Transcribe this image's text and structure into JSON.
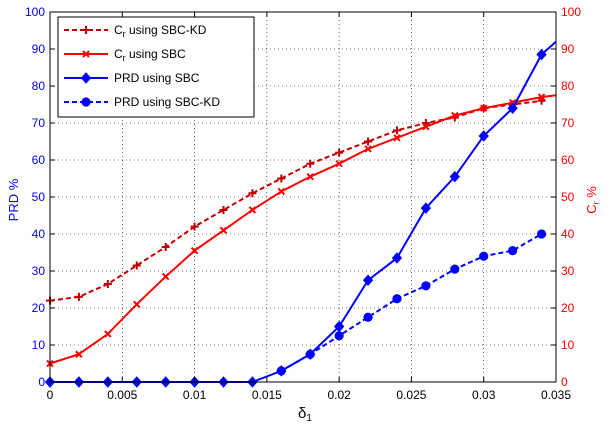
{
  "chart_data": {
    "type": "line",
    "xlabel": "δ1",
    "ylabel_left": "PRD %",
    "ylabel_right": "Cr %",
    "xlim": [
      0,
      0.035
    ],
    "ylim": [
      0,
      100
    ],
    "x_ticks": [
      "0",
      "0.005",
      "0.01",
      "0.015",
      "0.02",
      "0.025",
      "0.03",
      "0.035"
    ],
    "y_ticks": [
      "0",
      "10",
      "20",
      "30",
      "40",
      "50",
      "60",
      "70",
      "80",
      "90",
      "100"
    ],
    "grid": true,
    "legend_position": "top-left",
    "left_axis_color": "#0000ff",
    "right_axis_color": "#ff0000",
    "x": [
      0,
      0.002,
      0.004,
      0.006,
      0.008,
      0.01,
      0.012,
      0.014,
      0.016,
      0.018,
      0.02,
      0.022,
      0.024,
      0.026,
      0.028,
      0.03,
      0.032,
      0.034,
      0.035
    ],
    "series": [
      {
        "name": "Cr using SBC-KD",
        "legend_main": "C",
        "legend_sub": "r",
        "legend_rest": " using SBC-KD",
        "axis": "right",
        "color": "#c00000",
        "dash": "5,3",
        "marker": "plus",
        "values": [
          22,
          23,
          26.5,
          31.5,
          36.5,
          42,
          46.5,
          51,
          55,
          59,
          62,
          65,
          68,
          70,
          71.5,
          74,
          75,
          76,
          null
        ]
      },
      {
        "name": "Cr using SBC",
        "legend_main": "C",
        "legend_sub": "r",
        "legend_rest": " using SBC",
        "axis": "right",
        "color": "#ff0000",
        "dash": "",
        "marker": "x",
        "values": [
          5,
          7.5,
          13,
          21,
          28.5,
          35.5,
          41,
          46.5,
          51.5,
          55.5,
          59,
          63,
          66,
          69,
          72,
          74,
          75.5,
          77,
          77.5
        ]
      },
      {
        "name": "PRD using SBC",
        "legend_main": "PRD using SBC",
        "legend_sub": "",
        "legend_rest": "",
        "axis": "left",
        "color": "#0000ff",
        "dash": "",
        "marker": "diamond",
        "values": [
          0,
          0,
          0,
          0,
          0,
          0,
          0,
          0,
          3,
          7.5,
          15,
          27.5,
          33.5,
          47,
          55.5,
          66.5,
          74,
          88.5,
          92
        ]
      },
      {
        "name": "PRD using SBC-KD",
        "legend_main": "PRD using SBC-KD",
        "legend_sub": "",
        "legend_rest": "",
        "axis": "left",
        "color": "#0000ff",
        "dash": "5,3",
        "marker": "circle",
        "values": [
          null,
          null,
          null,
          null,
          null,
          null,
          null,
          null,
          3,
          7.5,
          12.5,
          17.5,
          22.5,
          26,
          30.5,
          34,
          35.5,
          40,
          null
        ]
      }
    ]
  }
}
